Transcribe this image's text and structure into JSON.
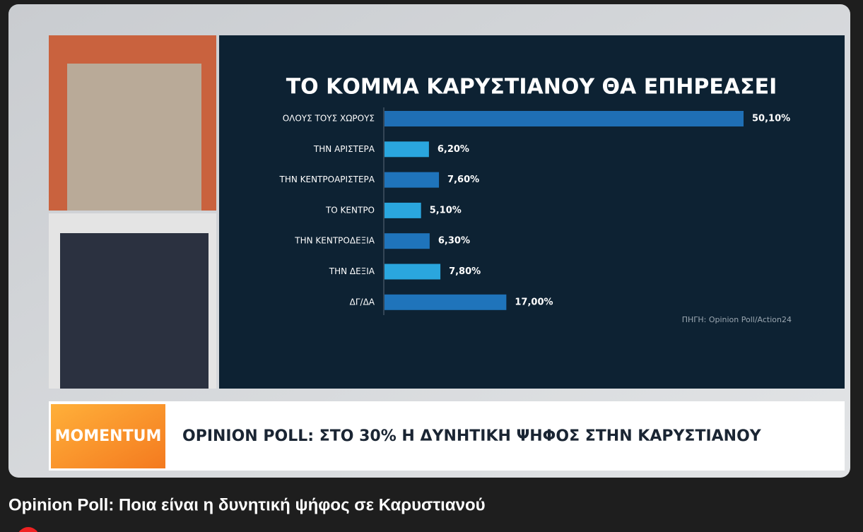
{
  "chart_data": {
    "type": "bar",
    "orientation": "horizontal",
    "title": "ΤΟ ΚΟΜΜΑ ΚΑΡΥΣΤΙΑΝΟΥ ΘΑ ΕΠΗΡΕΑΣΕΙ",
    "categories": [
      "ΟΛΟΥΣ ΤΟΥΣ ΧΩΡΟΥΣ",
      "ΤΗΝ ΑΡΙΣΤΕΡΑ",
      "ΤΗΝ ΚΕΝΤΡΟΑΡΙΣΤΕΡΑ",
      "ΤΟ ΚΕΝΤΡΟ",
      "ΤΗΝ ΚΕΝΤΡΟΔΕΞΙΑ",
      "ΤΗΝ ΔΕΞΙΑ",
      "ΔΓ/ΔΑ"
    ],
    "values": [
      50.1,
      6.2,
      7.6,
      5.1,
      6.3,
      7.8,
      17.0
    ],
    "value_labels": [
      "50,10%",
      "6,20%",
      "7,60%",
      "5,10%",
      "6,30%",
      "7,80%",
      "17,00%"
    ],
    "colors": [
      "#1f6fb5",
      "#2aa6de",
      "#1f74bb",
      "#2aa6de",
      "#1f74bb",
      "#2aa6de",
      "#1f74bb"
    ],
    "source": "ΠΗΓΗ: Opinion Poll/Action24"
  },
  "banner": {
    "logo": "MOMENTUM",
    "headline": "OPINION POLL: ΣΤΟ 30% Η ΔΥΝΗΤΙΚΗ ΨΗΦΟΣ ΣΤΗΝ ΚΑΡΥΣΤΙΑΝΟΥ"
  },
  "video_title": "Opinion Poll: Ποια είναι η δυνητική ψήφος σε Καρυστιανού"
}
